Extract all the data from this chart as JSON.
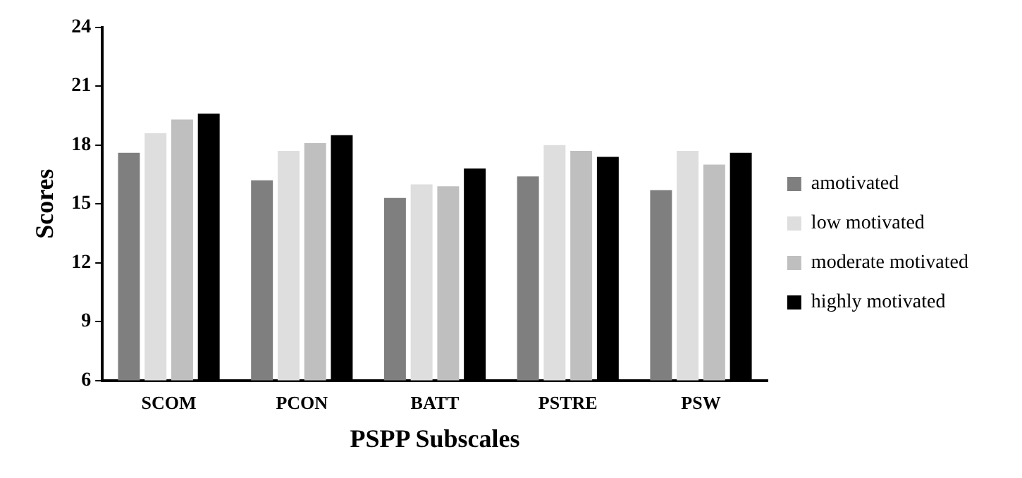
{
  "chart_data": {
    "type": "bar",
    "xlabel": "PSPP Subscales",
    "ylabel": "Scores",
    "categories": [
      "SCOM",
      "PCON",
      "BATT",
      "PSTRE",
      "PSW"
    ],
    "series": [
      {
        "name": "amotivated",
        "color": "#7f7f7f",
        "values": [
          17.6,
          16.2,
          15.3,
          16.4,
          15.7
        ]
      },
      {
        "name": "low motivated",
        "color": "#dedede",
        "values": [
          18.6,
          17.7,
          16.0,
          18.0,
          17.7
        ]
      },
      {
        "name": "moderate motivated",
        "color": "#bfbfbf",
        "values": [
          19.3,
          18.1,
          15.9,
          17.7,
          17.0
        ]
      },
      {
        "name": "highly motivated",
        "color": "#000000",
        "values": [
          19.6,
          18.5,
          16.8,
          17.4,
          17.6
        ]
      }
    ],
    "ylim": [
      6,
      24
    ],
    "yticks": [
      6,
      9,
      12,
      15,
      18,
      21,
      24
    ],
    "grid": false,
    "legend": "right"
  }
}
